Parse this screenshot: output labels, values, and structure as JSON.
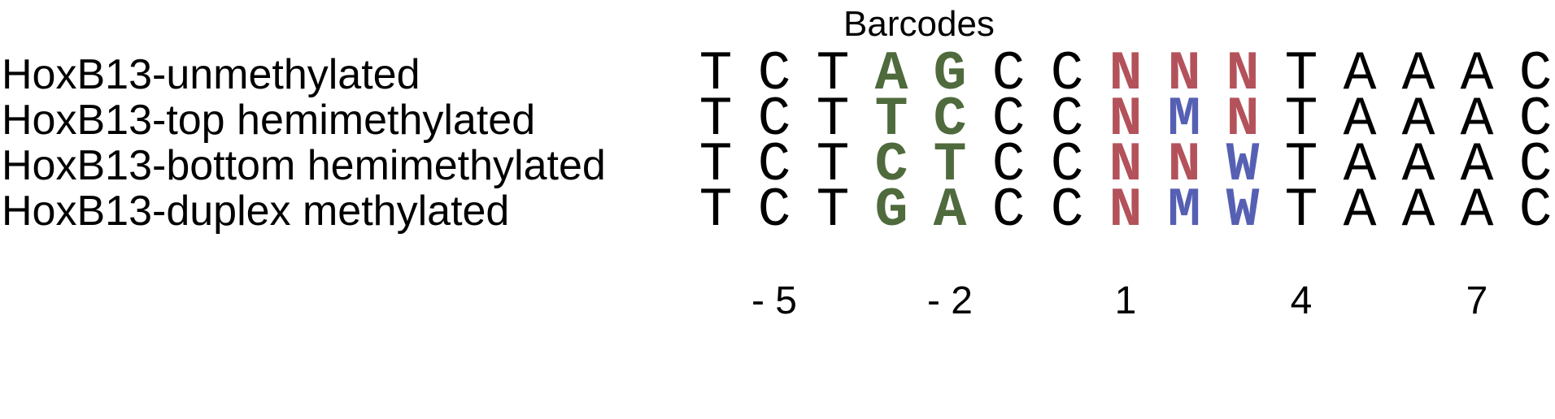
{
  "header": {
    "title": "Barcodes"
  },
  "colors": {
    "default": "#000000",
    "green": "#4f6b3d",
    "red": "#b3525a",
    "blue": "#5660b3"
  },
  "rows": [
    {
      "label": "HoxB13-unmethylated",
      "bases": [
        "T",
        "C",
        "T",
        "A",
        "G",
        "C",
        "C",
        "N",
        "N",
        "N",
        "T",
        "A",
        "A",
        "A",
        "C"
      ],
      "colors": [
        "default",
        "default",
        "default",
        "green",
        "green",
        "default",
        "default",
        "red",
        "red",
        "red",
        "default",
        "default",
        "default",
        "default",
        "default"
      ]
    },
    {
      "label": "HoxB13-top hemimethylated",
      "bases": [
        "T",
        "C",
        "T",
        "T",
        "C",
        "C",
        "C",
        "N",
        "M",
        "N",
        "T",
        "A",
        "A",
        "A",
        "C"
      ],
      "colors": [
        "default",
        "default",
        "default",
        "green",
        "green",
        "default",
        "default",
        "red",
        "blue",
        "red",
        "default",
        "default",
        "default",
        "default",
        "default"
      ]
    },
    {
      "label": "HoxB13-bottom hemimethylated",
      "bases": [
        "T",
        "C",
        "T",
        "C",
        "T",
        "C",
        "C",
        "N",
        "N",
        "W",
        "T",
        "A",
        "A",
        "A",
        "C"
      ],
      "colors": [
        "default",
        "default",
        "default",
        "green",
        "green",
        "default",
        "default",
        "red",
        "red",
        "blue",
        "default",
        "default",
        "default",
        "default",
        "default"
      ]
    },
    {
      "label": "HoxB13-duplex methylated",
      "bases": [
        "T",
        "C",
        "T",
        "G",
        "A",
        "C",
        "C",
        "N",
        "M",
        "W",
        "T",
        "A",
        "A",
        "A",
        "C"
      ],
      "colors": [
        "default",
        "default",
        "default",
        "green",
        "green",
        "default",
        "default",
        "red",
        "blue",
        "blue",
        "default",
        "default",
        "default",
        "default",
        "default"
      ]
    }
  ],
  "positions": [
    {
      "column": 1,
      "label": "- 5"
    },
    {
      "column": 4,
      "label": "- 2"
    },
    {
      "column": 7,
      "label": "1"
    },
    {
      "column": 10,
      "label": "4"
    },
    {
      "column": 13,
      "label": "7"
    }
  ]
}
